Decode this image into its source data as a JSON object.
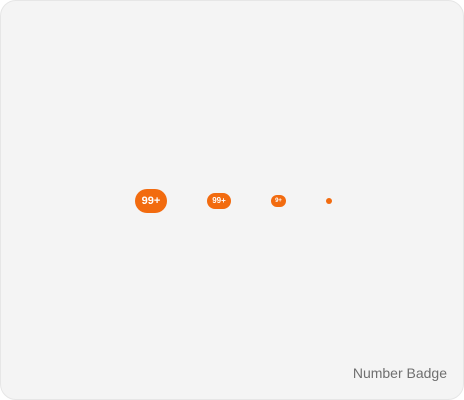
{
  "colors": {
    "accent": "#f26b0f",
    "background": "#f4f4f4",
    "caption_text": "#6f6f6f"
  },
  "badges": [
    {
      "size": "large",
      "text": "99+"
    },
    {
      "size": "medium",
      "text": "99+"
    },
    {
      "size": "small",
      "text": "9+"
    },
    {
      "size": "dot",
      "text": ""
    }
  ],
  "caption": "Number Badge"
}
